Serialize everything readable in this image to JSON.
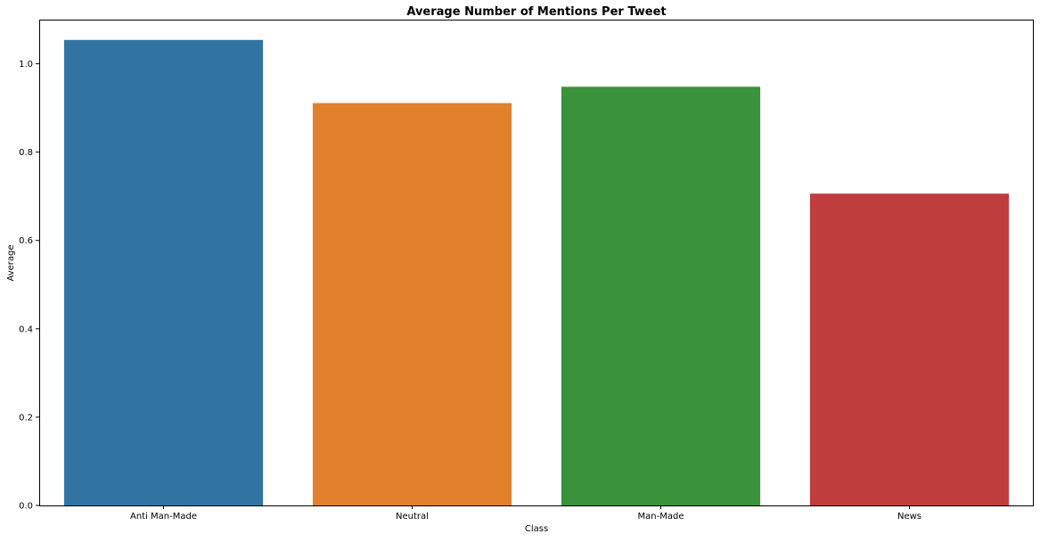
{
  "chart_data": {
    "type": "bar",
    "title": "Average Number of Mentions Per Tweet",
    "xlabel": "Class",
    "ylabel": "Average",
    "categories": [
      "Anti Man-Made",
      "Neutral",
      "Man-Made",
      "News"
    ],
    "values": [
      1.054,
      0.911,
      0.948,
      0.706
    ],
    "colors": [
      "#3274a1",
      "#e1812c",
      "#3a923a",
      "#c03d3e"
    ],
    "ylim": [
      0,
      1.1
    ],
    "yticks": [
      0.0,
      0.2,
      0.4,
      0.6,
      0.8,
      1.0
    ],
    "ytick_labels": [
      "0.0",
      "0.2",
      "0.4",
      "0.6",
      "0.8",
      "1.0"
    ],
    "grid": false,
    "legend": "none"
  }
}
